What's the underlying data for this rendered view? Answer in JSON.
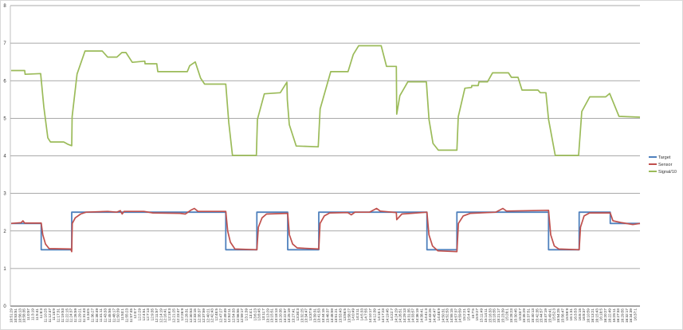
{
  "chart_data": {
    "type": "line",
    "title": "",
    "xlabel": "",
    "ylabel": "",
    "ylim": [
      0,
      8
    ],
    "yticks": [
      0,
      1,
      2,
      3,
      4,
      5,
      6,
      7,
      8
    ],
    "xlim": [
      "10:51:02",
      "16:39:58"
    ],
    "grid": "horizontal",
    "legend_position": "right",
    "x_tick_labels": [
      "10:51:29",
      "10:53:51",
      "10:56:13",
      "10:58:35",
      "11:0:57",
      "11:3:19",
      "11:5:41",
      "11:8:3",
      "11:10:25",
      "11:12:47",
      "11:15:9",
      "11:17:31",
      "11:19:53",
      "11:22:15",
      "11:24:37",
      "11:26:59",
      "11:29:21",
      "11:31:43",
      "11:34:5",
      "11:36:27",
      "11:38:49",
      "11:41:11",
      "11:43:33",
      "11:45:55",
      "11:48:17",
      "11:50:39",
      "11:53:1",
      "11:55:23",
      "11:57:45",
      "12:0:7",
      "12:2:29",
      "12:4:51",
      "12:7:13",
      "12:9:35",
      "12:11:57",
      "12:14:19",
      "12:16:41",
      "12:19:3",
      "12:21:25",
      "12:23:47",
      "12:26:9",
      "12:28:31",
      "12:30:53",
      "12:33:15",
      "12:35:37",
      "12:37:59",
      "12:40:21",
      "12:42:43",
      "12:45:5",
      "12:47:27",
      "12:49:49",
      "12:52:11",
      "12:54:33",
      "12:56:55",
      "12:59:17",
      "13:1:39",
      "13:4:1",
      "13:6:23",
      "13:8:45",
      "13:11:7",
      "13:13:29",
      "13:15:51",
      "13:18:13",
      "13:20:35",
      "13:22:57",
      "13:25:19",
      "13:27:41",
      "13:30:3",
      "13:32:25",
      "13:34:47",
      "13:37:9",
      "13:39:31",
      "13:41:53",
      "13:44:15",
      "13:46:37",
      "13:48:59",
      "13:51:21",
      "13:53:43",
      "13:56:5",
      "13:58:27",
      "14:0:49",
      "14:3:11",
      "14:5:33",
      "14:7:55",
      "14:10:17",
      "14:12:39",
      "14:15:1",
      "14:17:23",
      "14:19:45",
      "14:22:7",
      "14:24:29",
      "14:26:51",
      "14:29:13",
      "14:31:35",
      "14:33:57",
      "14:36:19",
      "14:38:41",
      "14:41:3",
      "14:43:25",
      "14:45:47",
      "14:48:9",
      "14:50:31",
      "14:52:53",
      "14:55:15",
      "14:57:37",
      "14:59:59",
      "15:2:21",
      "15:4:43",
      "15:7:5",
      "15:9:27",
      "15:11:49",
      "15:14:11",
      "15:16:33",
      "15:18:55",
      "15:21:17",
      "15:23:39",
      "15:26:1",
      "15:28:23",
      "15:30:45",
      "15:33:7",
      "15:35:29",
      "15:37:51",
      "15:40:13",
      "15:42:35",
      "15:44:57",
      "15:47:19",
      "15:49:41",
      "15:52:3",
      "15:54:25",
      "15:56:47",
      "15:59:9",
      "16:1:31",
      "16:3:53",
      "16:6:15",
      "16:8:37",
      "16:10:59",
      "16:13:21",
      "16:15:43",
      "16:18:5",
      "16:20:27",
      "16:22:49",
      "16:25:11",
      "16:27:33",
      "16:29:55",
      "16:32:17",
      "16:34:39",
      "16:37:1"
    ],
    "series": [
      {
        "name": "Target",
        "color": "#4f81bd",
        "step": true,
        "points": [
          [
            "10:51:29",
            2.2
          ],
          [
            "11:08:08",
            1.5
          ],
          [
            "11:25:03",
            2.5
          ],
          [
            "12:50:25",
            1.5
          ],
          [
            "13:07:39",
            2.5
          ],
          [
            "13:24:45",
            1.5
          ],
          [
            "13:41:58",
            2.5
          ],
          [
            "14:41:54",
            1.5
          ],
          [
            "14:58:30",
            2.5
          ],
          [
            "15:49:18",
            1.5
          ],
          [
            "16:06:16",
            2.5
          ],
          [
            "16:23:29",
            2.2
          ],
          [
            "16:39:58",
            2.2
          ]
        ]
      },
      {
        "name": "Sensor",
        "color": "#c0504d",
        "step": false,
        "points": [
          [
            "10:51:29",
            2.2
          ],
          [
            "10:57:00",
            2.22
          ],
          [
            "10:58:00",
            2.27
          ],
          [
            "10:59:00",
            2.21
          ],
          [
            "11:08:08",
            2.21
          ],
          [
            "11:09:00",
            1.9
          ],
          [
            "11:10:30",
            1.65
          ],
          [
            "11:12:30",
            1.53
          ],
          [
            "11:24:30",
            1.52
          ],
          [
            "11:25:03",
            1.45
          ],
          [
            "11:25:20",
            2.2
          ],
          [
            "11:27:00",
            2.35
          ],
          [
            "11:30:00",
            2.45
          ],
          [
            "11:33:00",
            2.5
          ],
          [
            "11:45:00",
            2.52
          ],
          [
            "11:50:00",
            2.5
          ],
          [
            "11:52:00",
            2.54
          ],
          [
            "11:53:00",
            2.45
          ],
          [
            "11:54:00",
            2.52
          ],
          [
            "12:05:00",
            2.52
          ],
          [
            "12:10:00",
            2.48
          ],
          [
            "12:25:00",
            2.47
          ],
          [
            "12:28:00",
            2.45
          ],
          [
            "12:31:00",
            2.55
          ],
          [
            "12:33:00",
            2.6
          ],
          [
            "12:35:00",
            2.52
          ],
          [
            "12:50:25",
            2.52
          ],
          [
            "12:51:30",
            2.0
          ],
          [
            "12:53:00",
            1.7
          ],
          [
            "12:55:30",
            1.52
          ],
          [
            "13:07:39",
            1.5
          ],
          [
            "13:08:30",
            2.1
          ],
          [
            "13:10:30",
            2.35
          ],
          [
            "13:13:00",
            2.45
          ],
          [
            "13:24:45",
            2.47
          ],
          [
            "13:25:40",
            1.9
          ],
          [
            "13:27:30",
            1.65
          ],
          [
            "13:30:00",
            1.55
          ],
          [
            "13:41:58",
            1.52
          ],
          [
            "13:42:40",
            2.2
          ],
          [
            "13:45:00",
            2.4
          ],
          [
            "13:48:00",
            2.48
          ],
          [
            "13:58:00",
            2.49
          ],
          [
            "14:00:00",
            2.43
          ],
          [
            "14:02:00",
            2.5
          ],
          [
            "14:10:00",
            2.5
          ],
          [
            "14:14:00",
            2.6
          ],
          [
            "14:16:00",
            2.53
          ],
          [
            "14:24:56",
            2.49
          ],
          [
            "14:25:10",
            2.3
          ],
          [
            "14:28:00",
            2.45
          ],
          [
            "14:41:54",
            2.5
          ],
          [
            "14:43:00",
            1.9
          ],
          [
            "14:45:00",
            1.6
          ],
          [
            "14:48:00",
            1.47
          ],
          [
            "14:58:30",
            1.45
          ],
          [
            "14:59:20",
            2.2
          ],
          [
            "15:02:00",
            2.4
          ],
          [
            "15:06:00",
            2.47
          ],
          [
            "15:20:00",
            2.5
          ],
          [
            "15:24:00",
            2.6
          ],
          [
            "15:26:00",
            2.53
          ],
          [
            "15:49:18",
            2.55
          ],
          [
            "15:50:30",
            1.9
          ],
          [
            "15:52:30",
            1.6
          ],
          [
            "15:55:00",
            1.52
          ],
          [
            "16:06:16",
            1.5
          ],
          [
            "16:07:00",
            2.1
          ],
          [
            "16:09:00",
            2.4
          ],
          [
            "16:12:00",
            2.48
          ],
          [
            "16:23:29",
            2.48
          ],
          [
            "16:25:00",
            2.27
          ],
          [
            "16:30:00",
            2.22
          ],
          [
            "16:36:00",
            2.17
          ],
          [
            "16:39:58",
            2.2
          ]
        ]
      },
      {
        "name": "Signal/10",
        "color": "#9bbb59",
        "step": false,
        "points": [
          [
            "10:51:29",
            6.27
          ],
          [
            "10:59:00",
            6.27
          ],
          [
            "10:59:12",
            6.17
          ],
          [
            "11:07:50",
            6.19
          ],
          [
            "11:09:36",
            5.3
          ],
          [
            "11:11:48",
            4.48
          ],
          [
            "11:13:15",
            4.37
          ],
          [
            "11:20:38",
            4.37
          ],
          [
            "11:22:50",
            4.31
          ],
          [
            "11:25:03",
            4.27
          ],
          [
            "11:25:16",
            5.04
          ],
          [
            "11:28:01",
            6.18
          ],
          [
            "11:32:24",
            6.79
          ],
          [
            "11:41:58",
            6.79
          ],
          [
            "11:44:56",
            6.63
          ],
          [
            "11:50:06",
            6.63
          ],
          [
            "11:52:53",
            6.75
          ],
          [
            "11:55:05",
            6.75
          ],
          [
            "11:58:37",
            6.49
          ],
          [
            "12:05:33",
            6.52
          ],
          [
            "12:05:41",
            6.45
          ],
          [
            "12:12:11",
            6.45
          ],
          [
            "12:12:45",
            6.24
          ],
          [
            "12:29:06",
            6.24
          ],
          [
            "12:30:25",
            6.4
          ],
          [
            "12:33:31",
            6.5
          ],
          [
            "12:36:28",
            6.07
          ],
          [
            "12:38:41",
            5.91
          ],
          [
            "12:50:25",
            5.91
          ],
          [
            "12:52:04",
            4.9
          ],
          [
            "12:54:08",
            4.01
          ],
          [
            "13:07:23",
            4.01
          ],
          [
            "13:07:58",
            4.97
          ],
          [
            "13:11:48",
            5.65
          ],
          [
            "13:20:38",
            5.68
          ],
          [
            "13:24:18",
            5.96
          ],
          [
            "13:24:31",
            5.5
          ],
          [
            "13:25:38",
            4.83
          ],
          [
            "13:29:28",
            4.26
          ],
          [
            "13:41:39",
            4.24
          ],
          [
            "13:42:43",
            5.25
          ],
          [
            "13:48:36",
            6.24
          ],
          [
            "13:58:11",
            6.24
          ],
          [
            "14:01:05",
            6.7
          ],
          [
            "14:04:03",
            6.93
          ],
          [
            "14:16:33",
            6.93
          ],
          [
            "14:19:30",
            6.38
          ],
          [
            "14:24:56",
            6.38
          ],
          [
            "14:25:10",
            5.11
          ],
          [
            "14:26:53",
            5.6
          ],
          [
            "14:31:18",
            5.97
          ],
          [
            "14:41:36",
            5.97
          ],
          [
            "14:43:03",
            4.97
          ],
          [
            "14:45:15",
            4.33
          ],
          [
            "14:48:13",
            4.15
          ],
          [
            "14:58:30",
            4.15
          ],
          [
            "14:59:16",
            5.04
          ],
          [
            "15:02:55",
            5.8
          ],
          [
            "15:06:38",
            5.82
          ],
          [
            "15:06:46",
            5.87
          ],
          [
            "15:10:18",
            5.87
          ],
          [
            "15:10:45",
            5.97
          ],
          [
            "15:15:28",
            5.97
          ],
          [
            "15:18:15",
            6.21
          ],
          [
            "15:27:05",
            6.21
          ],
          [
            "15:28:43",
            6.09
          ],
          [
            "15:32:23",
            6.09
          ],
          [
            "15:34:36",
            5.75
          ],
          [
            "15:43:26",
            5.75
          ],
          [
            "15:44:45",
            5.68
          ],
          [
            "15:47:51",
            5.68
          ],
          [
            "15:49:18",
            4.97
          ],
          [
            "15:53:01",
            4.01
          ],
          [
            "16:05:57",
            4.01
          ],
          [
            "16:07:43",
            5.18
          ],
          [
            "16:12:08",
            5.57
          ],
          [
            "16:20:58",
            5.57
          ],
          [
            "16:23:11",
            5.66
          ],
          [
            "16:28:21",
            5.05
          ],
          [
            "16:39:58",
            5.03
          ]
        ]
      }
    ]
  },
  "legend": {
    "items": [
      {
        "label": "Target",
        "color": "#4f81bd"
      },
      {
        "label": "Sensor",
        "color": "#c0504d"
      },
      {
        "label": "Signal/10",
        "color": "#9bbb59"
      }
    ]
  }
}
